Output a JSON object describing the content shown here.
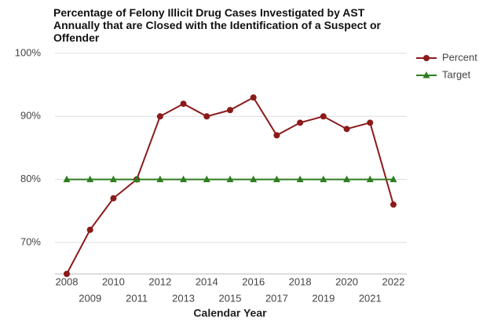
{
  "chart_data": {
    "type": "line",
    "title": "Percentage of Felony Illicit Drug Cases Investigated by AST Annually that are Closed with the Identification of a Suspect or Offender",
    "x_label": "Calendar Year",
    "categories": [
      "2008",
      "2009",
      "2010",
      "2011",
      "2012",
      "2013",
      "2014",
      "2015",
      "2016",
      "2017",
      "2018",
      "2019",
      "2020",
      "2021",
      "2022"
    ],
    "series": [
      {
        "name": "Percent",
        "color": "#8b1a1a",
        "marker": "circle",
        "values": [
          65,
          72,
          77,
          80,
          90,
          92,
          90,
          91,
          93,
          87,
          89,
          90,
          88,
          89,
          76
        ]
      },
      {
        "name": "Target",
        "color": "#2e7d1e",
        "marker": "triangle",
        "values": [
          80,
          80,
          80,
          80,
          80,
          80,
          80,
          80,
          80,
          80,
          80,
          80,
          80,
          80,
          80
        ]
      }
    ],
    "ylim": [
      65,
      100
    ],
    "yticks": [
      {
        "value": 70,
        "label": "70%"
      },
      {
        "value": 80,
        "label": "80%"
      },
      {
        "value": 90,
        "label": "90%"
      },
      {
        "value": 100,
        "label": "100%"
      }
    ],
    "grid": true,
    "legend": "right"
  }
}
